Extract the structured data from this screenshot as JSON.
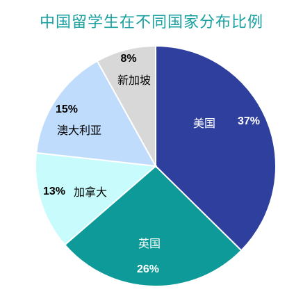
{
  "chart_data": {
    "type": "pie",
    "title": "中国留学生在不同国家分布比例",
    "slices": [
      {
        "label": "美国",
        "value": 37,
        "value_label": "37%",
        "color": "#2e3f9e",
        "text_color": "#ffffff"
      },
      {
        "label": "英国",
        "value": 26,
        "value_label": "26%",
        "color": "#0f9a9a",
        "text_color": "#ffffff"
      },
      {
        "label": "加拿大",
        "value": 13,
        "value_label": "13%",
        "color": "#c8fbfb",
        "text_color": "#000000"
      },
      {
        "label": "澳大利亚",
        "value": 15,
        "value_label": "15%",
        "color": "#c0dcfc",
        "text_color": "#000000"
      },
      {
        "label": "新加坡",
        "value": 8,
        "value_label": "8%",
        "color": "#d8d8d8",
        "text_color": "#000000"
      }
    ],
    "start_angle": "top (12 o'clock)",
    "direction": "clockwise",
    "legend": "none (labels on slices)"
  }
}
